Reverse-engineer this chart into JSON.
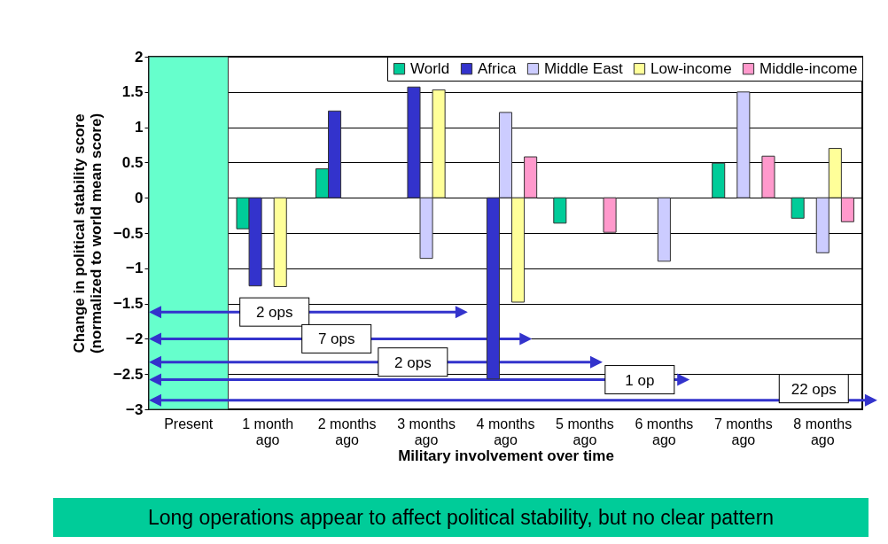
{
  "chart_data": {
    "type": "bar",
    "xlabel": "Military involvement over time",
    "ylabel": "Change in political stability score\n(normalized to world mean score)",
    "categories": [
      "Present",
      "1 month ago",
      "2 months ago",
      "3 months ago",
      "4 months ago",
      "5 months ago",
      "6 months ago",
      "7 months ago",
      "8 months ago"
    ],
    "series": [
      {
        "name": "World",
        "color": "#00cc99",
        "values": [
          null,
          -0.44,
          0.41,
          null,
          null,
          -0.36,
          null,
          0.49,
          -0.29
        ]
      },
      {
        "name": "Africa",
        "color": "#3333cc",
        "values": [
          null,
          -1.25,
          1.23,
          1.57,
          -2.57,
          null,
          null,
          null,
          null
        ]
      },
      {
        "name": "Middle East",
        "color": "#ccccff",
        "values": [
          null,
          null,
          null,
          -0.86,
          1.21,
          null,
          -0.9,
          1.5,
          -0.78
        ]
      },
      {
        "name": "Low-income",
        "color": "#ffff99",
        "values": [
          null,
          -1.26,
          null,
          1.53,
          -1.48,
          null,
          null,
          null,
          0.7
        ]
      },
      {
        "name": "Middle-income",
        "color": "#ff99cc",
        "values": [
          null,
          null,
          null,
          null,
          0.58,
          -0.49,
          null,
          0.59,
          -0.34
        ]
      }
    ],
    "ylim": [
      -3,
      2
    ],
    "yticks": [
      -3,
      -2.5,
      -2,
      -1.5,
      -1,
      -0.5,
      0,
      0.5,
      1,
      1.5,
      2
    ],
    "grid": "y",
    "legend": "top right",
    "bands": [
      {
        "axis": "x",
        "from": "Present",
        "to": "Present",
        "color": "#66ffcc"
      }
    ],
    "annotations": [
      "2 ops",
      "7 ops",
      "2 ops",
      "1 op",
      "22 ops",
      "Long operations appear to affect political stability, but no clear pattern"
    ]
  }
}
